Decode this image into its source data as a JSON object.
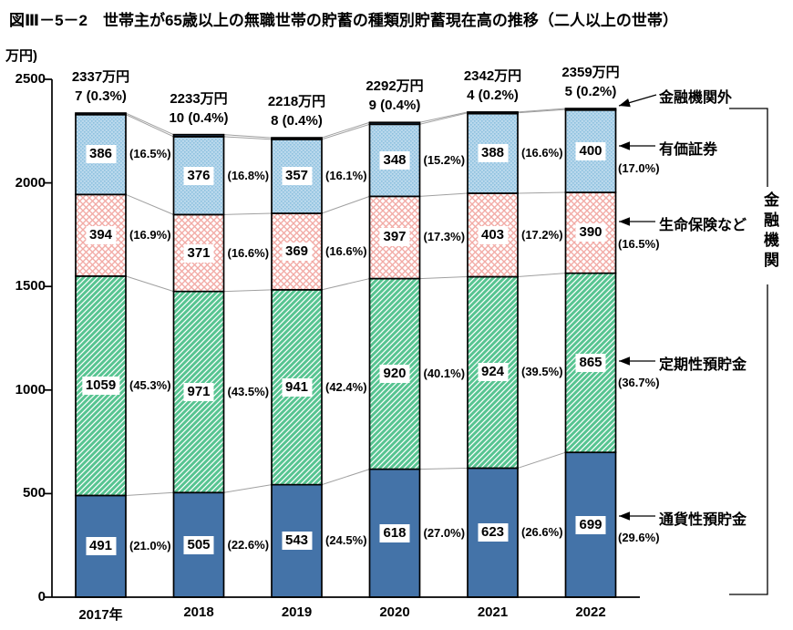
{
  "title": "図Ⅲ－5－2　世帯主が65歳以上の無職世帯の貯蓄の種類別貯蓄現在高の推移（二人以上の世帯）",
  "chart_data": {
    "type": "bar",
    "stacked": true,
    "unit_label": "万円)",
    "ylim": [
      0,
      2500
    ],
    "y_ticks": [
      0,
      500,
      1000,
      1500,
      2000,
      2500
    ],
    "grid": false,
    "categories": [
      "2017年",
      "2018",
      "2019",
      "2020",
      "2021",
      "2022"
    ],
    "series": [
      {
        "name": "通貨性預貯金",
        "pattern": "solid-blue",
        "color": "#4473a8",
        "values": [
          491,
          505,
          543,
          618,
          623,
          699
        ],
        "percent_labels": [
          "(21.0%)",
          "(22.6%)",
          "(24.5%)",
          "(27.0%)",
          "(26.6%)",
          "(29.6%)"
        ]
      },
      {
        "name": "定期性預貯金",
        "pattern": "green-stripe",
        "color": "#57c491",
        "values": [
          1059,
          971,
          941,
          920,
          924,
          865
        ],
        "percent_labels": [
          "(45.3%)",
          "(43.5%)",
          "(42.4%)",
          "(40.1%)",
          "(39.5%)",
          "(36.7%)"
        ]
      },
      {
        "name": "生命保険など",
        "pattern": "pink-crosshatch",
        "color": "#f2aba6",
        "values": [
          394,
          371,
          369,
          397,
          403,
          390
        ],
        "percent_labels": [
          "(16.9%)",
          "(16.6%)",
          "(16.6%)",
          "(17.3%)",
          "(17.2%)",
          "(16.5%)"
        ]
      },
      {
        "name": "有価証券",
        "pattern": "blue-dots",
        "color": "#aed2ea",
        "values": [
          386,
          376,
          357,
          348,
          388,
          400
        ],
        "percent_labels": [
          "(16.5%)",
          "(16.8%)",
          "(16.1%)",
          "(15.2%)",
          "(16.6%)",
          "(17.0%)"
        ]
      },
      {
        "name": "金融機関外",
        "pattern": "dark-cap",
        "color": "#24456b",
        "values": [
          7,
          10,
          8,
          9,
          4,
          5
        ],
        "percent_labels": [
          "(0.3%)",
          "(0.4%)",
          "(0.4%)",
          "(0.4%)",
          "(0.2%)",
          "(0.2%)"
        ]
      }
    ],
    "totals": [
      2337,
      2233,
      2218,
      2292,
      2342,
      2359
    ],
    "total_labels": [
      "2337万円",
      "2233万円",
      "2218万円",
      "2292万円",
      "2342万円",
      "2359万円"
    ],
    "cap_annotations": [
      "7 (0.3%)",
      "10 (0.4%)",
      "8 (0.4%)",
      "9 (0.4%)",
      "4 (0.2%)",
      "5 (0.2%)"
    ],
    "right_annotations": {
      "outside_label": "金融機関外",
      "category_labels": [
        "有価証券",
        "生命保険など",
        "定期性預貯金",
        "通貨性預貯金"
      ],
      "bracket_label": "金融機関"
    }
  }
}
